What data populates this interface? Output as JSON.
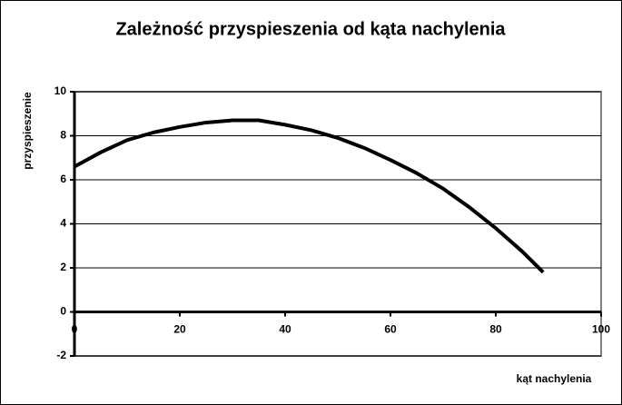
{
  "chart_data": {
    "type": "line",
    "title": "Zależność przyspieszenia od kąta nachylenia",
    "x_label": "kąt nachylenia",
    "y_label": "przyspieszenie",
    "series": [
      {
        "name": "przyspieszenie",
        "color": "#000000",
        "x": [
          0,
          5,
          10,
          15,
          20,
          25,
          30,
          35,
          40,
          45,
          50,
          55,
          60,
          65,
          70,
          75,
          80,
          85,
          89
        ],
        "values": [
          6.6,
          7.25,
          7.8,
          8.15,
          8.4,
          8.6,
          8.7,
          8.7,
          8.5,
          8.25,
          7.9,
          7.45,
          6.9,
          6.3,
          5.6,
          4.75,
          3.8,
          2.75,
          1.8
        ]
      }
    ],
    "xlim": [
      0,
      100
    ],
    "xticks": [
      0,
      20,
      40,
      60,
      80,
      100
    ],
    "ylim": [
      -2,
      10
    ],
    "yticks": [
      -2,
      0,
      2,
      4,
      6,
      8,
      10
    ],
    "grid": true
  }
}
